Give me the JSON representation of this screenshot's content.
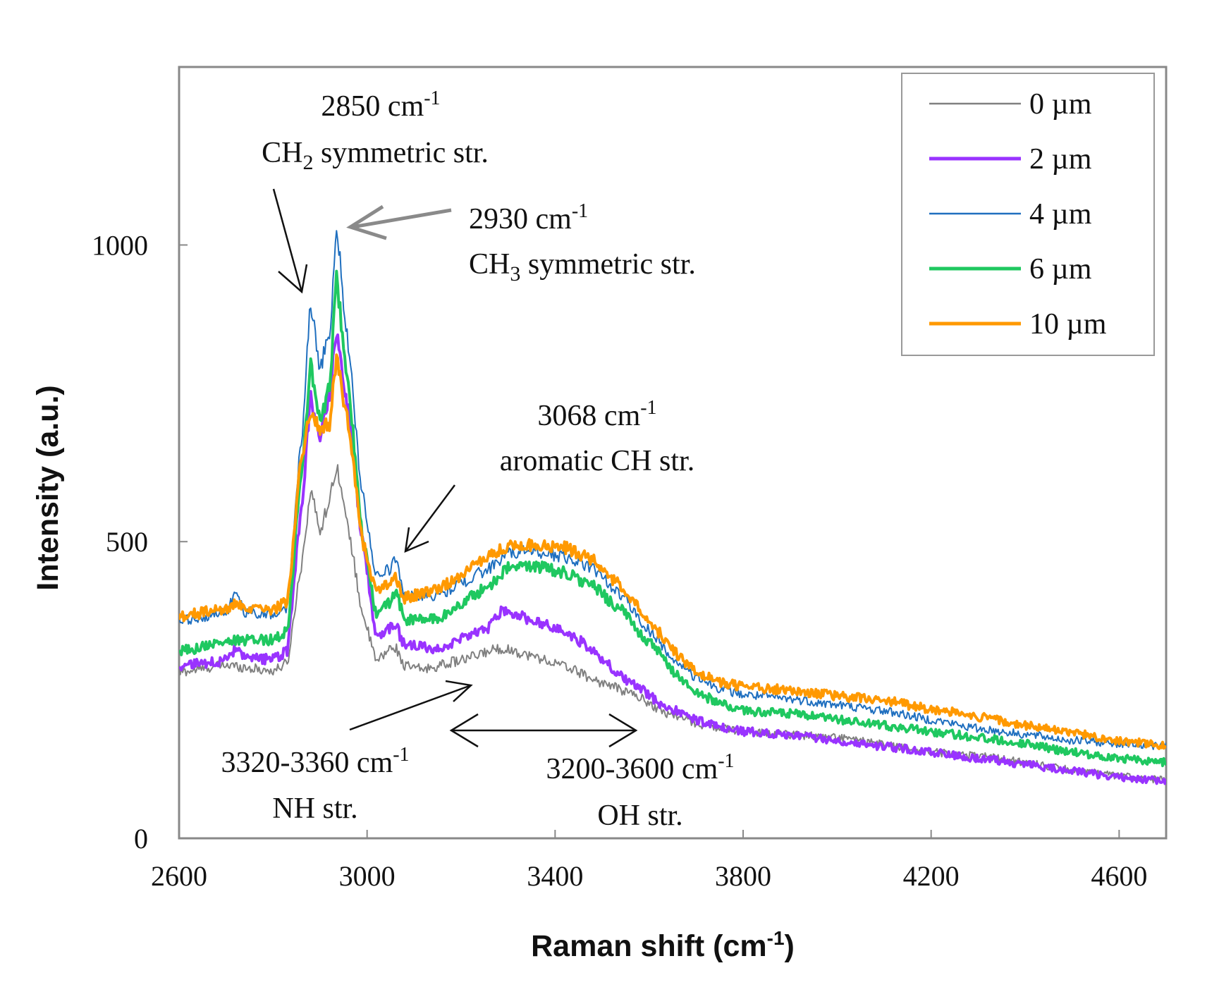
{
  "chart_data": {
    "type": "line",
    "title": "",
    "xlabel": "Raman shift (cm",
    "xlabel_sup": "-1",
    "xlabel_end": ")",
    "ylabel": "Intensity (a.u.)",
    "xlim": [
      2600,
      4700
    ],
    "ylim": [
      0,
      1300
    ],
    "xticks": [
      2600,
      3000,
      3400,
      3800,
      4200,
      4600
    ],
    "yticks": [
      0,
      500,
      1000
    ],
    "grid": false,
    "legend_position": "top-right",
    "series": [
      {
        "name": "0 µm",
        "color": "#808080",
        "width": 2,
        "x": [
          2600,
          2700,
          2800,
          2830,
          2860,
          2880,
          2900,
          2920,
          2935,
          2960,
          2990,
          3020,
          3050,
          3060,
          3080,
          3120,
          3200,
          3280,
          3300,
          3360,
          3420,
          3500,
          3560,
          3640,
          3720,
          3800,
          3900,
          4000,
          4100,
          4200,
          4300,
          4400,
          4500,
          4600,
          4700
        ],
        "y": [
          280,
          292,
          282,
          295,
          460,
          585,
          520,
          570,
          630,
          520,
          380,
          298,
          320,
          322,
          290,
          285,
          300,
          320,
          318,
          305,
          290,
          262,
          245,
          210,
          190,
          180,
          175,
          170,
          158,
          145,
          140,
          128,
          115,
          105,
          98
        ]
      },
      {
        "name": "2 µm",
        "color": "#9933ff",
        "width": 4,
        "x": [
          2600,
          2700,
          2720,
          2740,
          2800,
          2830,
          2860,
          2880,
          2900,
          2920,
          2935,
          2960,
          2990,
          3020,
          3050,
          3060,
          3080,
          3150,
          3250,
          3290,
          3320,
          3400,
          3460,
          3500,
          3560,
          3640,
          3700,
          3760,
          3800,
          3900,
          4000,
          4100,
          4200,
          4300,
          4400,
          4500,
          4600,
          4700
        ],
        "y": [
          290,
          300,
          318,
          302,
          302,
          315,
          555,
          740,
          680,
          750,
          855,
          720,
          500,
          340,
          355,
          360,
          325,
          320,
          350,
          385,
          375,
          355,
          330,
          300,
          262,
          220,
          200,
          185,
          180,
          175,
          165,
          155,
          145,
          135,
          125,
          113,
          103,
          97
        ]
      },
      {
        "name": "4 µm",
        "color": "#1f6fbf",
        "width": 2,
        "x": [
          2600,
          2700,
          2720,
          2740,
          2800,
          2830,
          2860,
          2880,
          2900,
          2920,
          2935,
          2960,
          2990,
          3020,
          3050,
          3060,
          3080,
          3150,
          3250,
          3300,
          3350,
          3420,
          3480,
          3540,
          3600,
          3660,
          3700,
          3760,
          3800,
          3900,
          4000,
          4100,
          4200,
          4300,
          4400,
          4500,
          4600,
          4700
        ],
        "y": [
          365,
          380,
          410,
          382,
          378,
          390,
          670,
          900,
          795,
          850,
          1025,
          830,
          580,
          440,
          455,
          470,
          410,
          410,
          450,
          480,
          485,
          475,
          455,
          410,
          350,
          295,
          270,
          250,
          242,
          235,
          225,
          215,
          200,
          185,
          175,
          165,
          160,
          155
        ]
      },
      {
        "name": "6 µm",
        "color": "#1fc860",
        "width": 4,
        "x": [
          2600,
          2700,
          2800,
          2830,
          2860,
          2880,
          2900,
          2920,
          2935,
          2960,
          2990,
          3020,
          3050,
          3060,
          3080,
          3150,
          3250,
          3300,
          3350,
          3420,
          3480,
          3540,
          3600,
          3660,
          3700,
          3760,
          3800,
          3900,
          4000,
          4100,
          4200,
          4300,
          4400,
          4500,
          4600,
          4700
        ],
        "y": [
          315,
          332,
          335,
          350,
          610,
          795,
          700,
          760,
          940,
          760,
          510,
          375,
          400,
          418,
          368,
          370,
          420,
          455,
          460,
          448,
          425,
          385,
          330,
          275,
          245,
          225,
          215,
          210,
          200,
          190,
          180,
          170,
          160,
          145,
          135,
          128
        ]
      },
      {
        "name": "10 µm",
        "color": "#ff9900",
        "width": 4,
        "x": [
          2600,
          2700,
          2720,
          2740,
          2800,
          2830,
          2860,
          2880,
          2900,
          2920,
          2935,
          2960,
          2990,
          3020,
          3050,
          3060,
          3080,
          3150,
          3250,
          3300,
          3350,
          3420,
          3480,
          3540,
          3600,
          3660,
          3700,
          3760,
          3800,
          3900,
          4000,
          4100,
          4200,
          4300,
          4400,
          4500,
          4600,
          4700
        ],
        "y": [
          375,
          385,
          395,
          385,
          385,
          400,
          640,
          720,
          690,
          700,
          805,
          700,
          500,
          420,
          430,
          440,
          405,
          420,
          470,
          492,
          495,
          490,
          470,
          425,
          365,
          310,
          280,
          262,
          255,
          250,
          240,
          232,
          218,
          205,
          190,
          178,
          165,
          155
        ]
      }
    ],
    "annotations": [
      {
        "id": "ann-2850",
        "line1": "2850 cm",
        "line1_sup": "-1",
        "line2_a": "CH",
        "line2_sub": "2",
        "line2_b": " symmetric str."
      },
      {
        "id": "ann-2930",
        "line1": "2930 cm",
        "line1_sup": "-1",
        "line2_a": "CH",
        "line2_sub": "3",
        "line2_b": " symmetric str."
      },
      {
        "id": "ann-3068",
        "line1": "3068 cm",
        "line1_sup": "-1",
        "line2_a": "aromatic CH str.",
        "line2_sub": "",
        "line2_b": ""
      },
      {
        "id": "ann-nh",
        "line1": "3320-3360 cm",
        "line1_sup": "-1",
        "line2_a": "NH str.",
        "line2_sub": "",
        "line2_b": ""
      },
      {
        "id": "ann-oh",
        "line1": "3200-3600 cm",
        "line1_sup": "-1",
        "line2_a": "OH str.",
        "line2_sub": "",
        "line2_b": ""
      }
    ]
  }
}
